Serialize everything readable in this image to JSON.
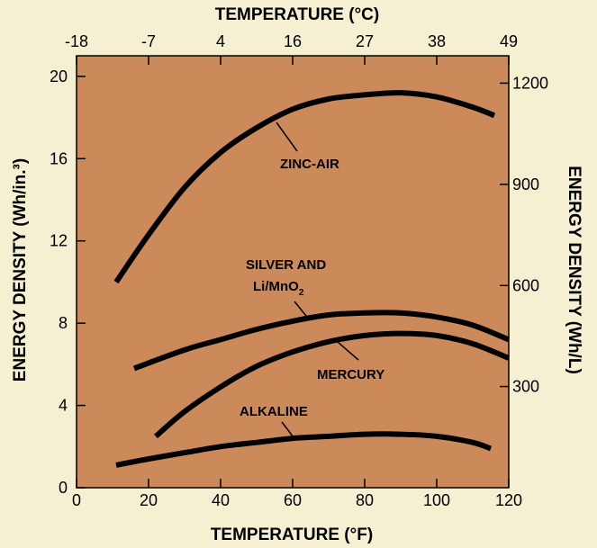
{
  "chart_data": {
    "type": "line",
    "top_axis": {
      "label": "TEMPERATURE (°C)",
      "ticks": [
        "-18",
        "-7",
        "4",
        "16",
        "27",
        "38",
        "49"
      ],
      "tick_values_f": [
        0,
        20,
        40,
        60,
        80,
        100,
        120
      ]
    },
    "bottom_axis": {
      "label": "TEMPERATURE (°F)",
      "ticks": [
        "0",
        "20",
        "40",
        "60",
        "80",
        "100",
        "120"
      ],
      "xlim": [
        0,
        120
      ]
    },
    "left_axis": {
      "label": "ENERGY DENSITY (Wh/in.³)",
      "ticks": [
        "0",
        "4",
        "8",
        "12",
        "16",
        "20"
      ],
      "ylim": [
        0,
        21
      ]
    },
    "right_axis": {
      "label": "ENERGY DENSITY (Wh/L)",
      "ticks": [
        "300",
        "600",
        "900",
        "1200"
      ],
      "tick_values_wh_in3": [
        4.92,
        9.83,
        14.75,
        19.67
      ]
    },
    "grid": false,
    "series": [
      {
        "id": "zinc-air",
        "x": [
          11,
          20,
          30,
          40,
          50,
          60,
          70,
          80,
          90,
          100,
          110,
          116
        ],
        "y": [
          10.0,
          12.3,
          14.6,
          16.3,
          17.5,
          18.4,
          18.9,
          19.1,
          19.2,
          19.0,
          18.5,
          18.1
        ]
      },
      {
        "id": "silver-and-li-mno2",
        "x": [
          16,
          30,
          40,
          50,
          60,
          70,
          80,
          90,
          100,
          110,
          120
        ],
        "y": [
          5.8,
          6.7,
          7.2,
          7.7,
          8.1,
          8.4,
          8.5,
          8.5,
          8.3,
          7.9,
          7.2
        ]
      },
      {
        "id": "mercury",
        "x": [
          22,
          30,
          40,
          50,
          60,
          70,
          80,
          90,
          100,
          110,
          120
        ],
        "y": [
          2.5,
          3.7,
          4.9,
          5.9,
          6.6,
          7.1,
          7.4,
          7.5,
          7.4,
          7.0,
          6.3
        ]
      },
      {
        "id": "alkaline",
        "x": [
          11,
          20,
          30,
          40,
          50,
          60,
          70,
          80,
          90,
          100,
          110,
          115
        ],
        "y": [
          1.1,
          1.4,
          1.7,
          2.0,
          2.2,
          2.4,
          2.5,
          2.6,
          2.6,
          2.5,
          2.2,
          1.9
        ]
      }
    ],
    "annotations": {
      "zinc_air": "ZINC-AIR",
      "silver_line1": "SILVER AND",
      "silver_line2": "Li/MnO",
      "silver_sub": "2",
      "mercury": "MERCURY",
      "alkaline": "ALKALINE"
    }
  }
}
